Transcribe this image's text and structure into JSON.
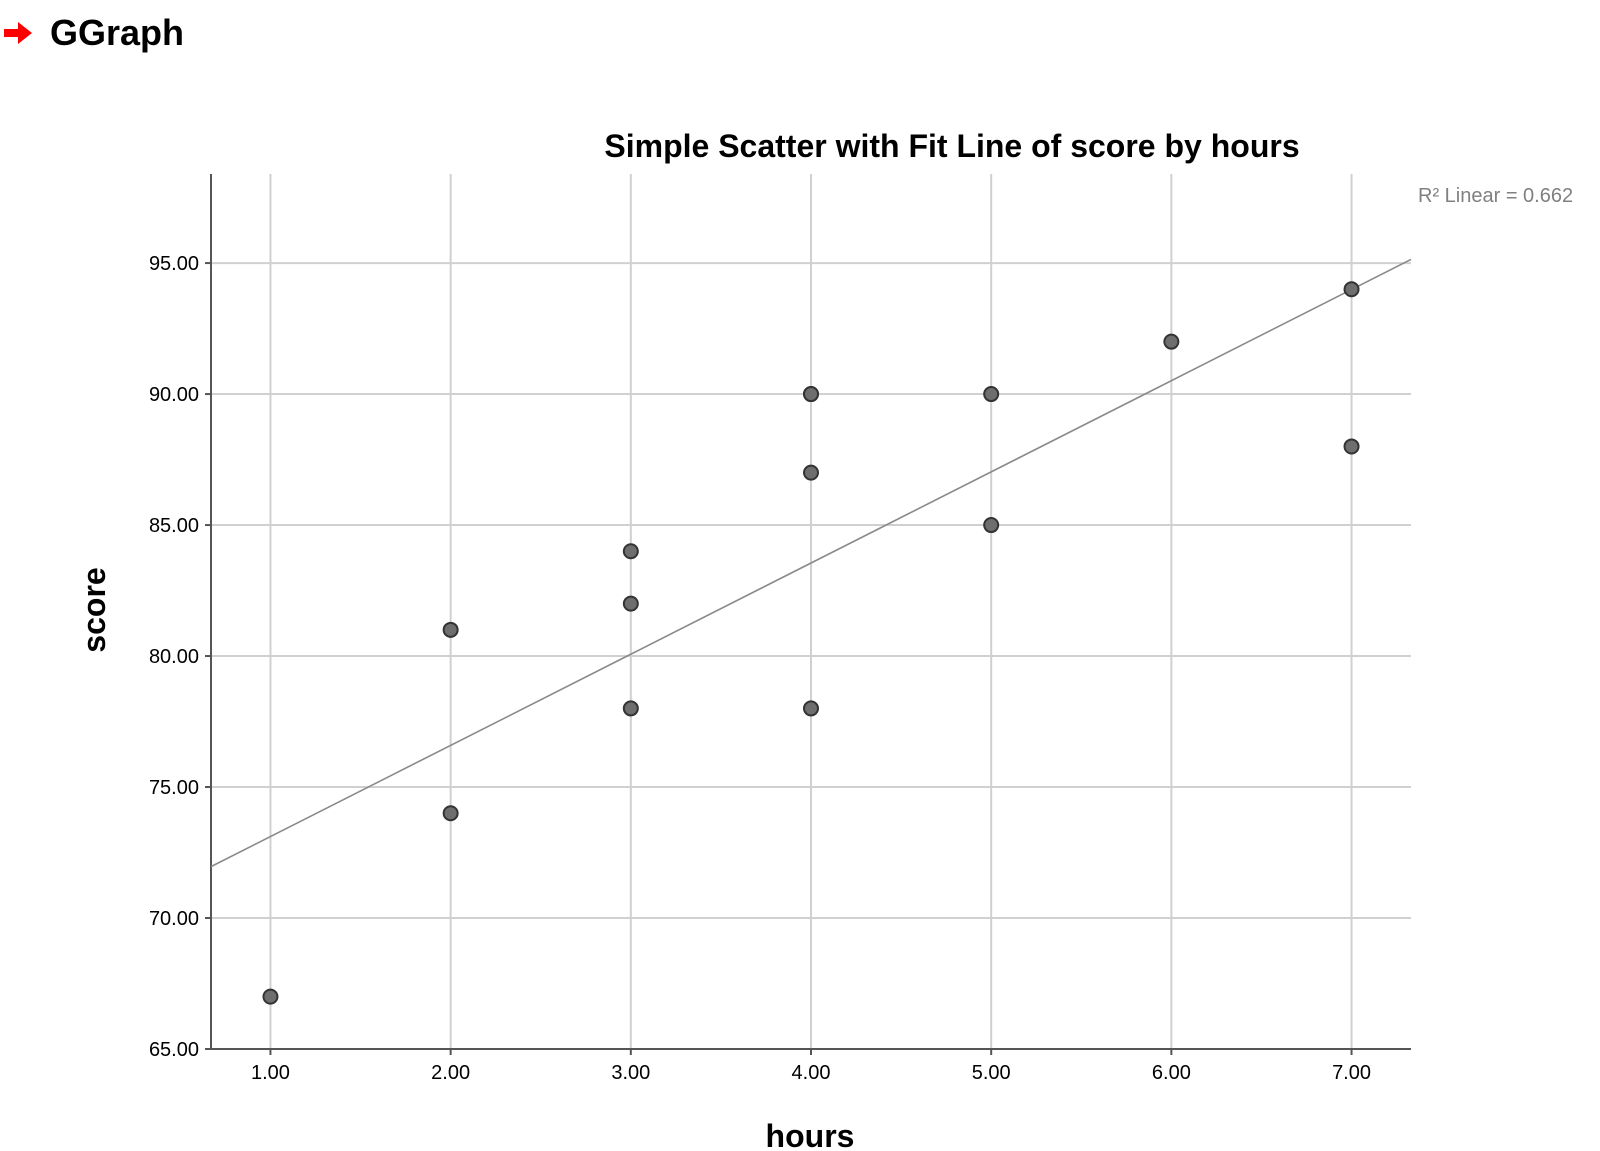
{
  "header": {
    "title": "GGraph",
    "icon": "right-arrow-icon",
    "icon_color": "#ff0000"
  },
  "chart_data": {
    "type": "scatter",
    "title": "Simple Scatter with Fit Line of score by hours",
    "xlabel": "hours",
    "ylabel": "score",
    "xlim": [
      0.67,
      7.33
    ],
    "ylim": [
      65,
      98.4
    ],
    "x_ticks": [
      1,
      2,
      3,
      4,
      5,
      6,
      7
    ],
    "x_tick_labels": [
      "1.00",
      "2.00",
      "3.00",
      "4.00",
      "5.00",
      "6.00",
      "7.00"
    ],
    "y_ticks": [
      65,
      70,
      75,
      80,
      85,
      90,
      95
    ],
    "y_tick_labels": [
      "65.00",
      "70.00",
      "75.00",
      "80.00",
      "85.00",
      "90.00",
      "95.00"
    ],
    "grid": true,
    "points": [
      {
        "x": 1,
        "y": 67
      },
      {
        "x": 2,
        "y": 74
      },
      {
        "x": 2,
        "y": 81
      },
      {
        "x": 3,
        "y": 78
      },
      {
        "x": 3,
        "y": 82
      },
      {
        "x": 3,
        "y": 84
      },
      {
        "x": 4,
        "y": 78
      },
      {
        "x": 4,
        "y": 87
      },
      {
        "x": 4,
        "y": 90
      },
      {
        "x": 4,
        "y": 90
      },
      {
        "x": 5,
        "y": 85
      },
      {
        "x": 5,
        "y": 90
      },
      {
        "x": 6,
        "y": 92
      },
      {
        "x": 7,
        "y": 88
      },
      {
        "x": 7,
        "y": 94
      }
    ],
    "fit_line": {
      "intercept": 69.63,
      "slope": 3.48,
      "label": "R² Linear = 0.662"
    },
    "colors": {
      "point_fill": "#6e6e6e",
      "point_stroke": "#333333",
      "fit_line": "#8a8a8a",
      "grid": "#d0d0d0",
      "axis": "#555555"
    }
  }
}
